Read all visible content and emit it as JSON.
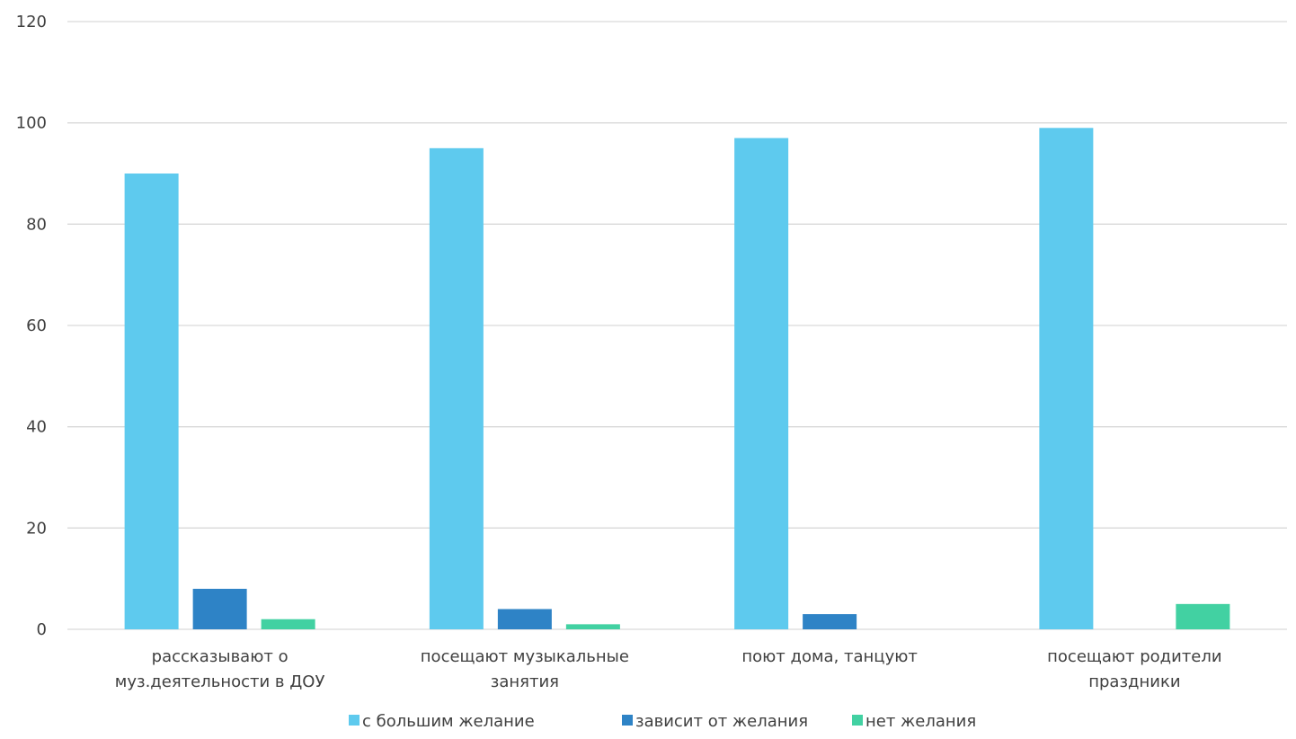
{
  "chart_data": {
    "type": "bar",
    "categories": [
      [
        "рассказывают о",
        "муз.деятельности в ДОУ"
      ],
      [
        "посещают музыкальные",
        "занятия"
      ],
      [
        "поют дома, танцуют"
      ],
      [
        "посещают родители",
        "праздники"
      ]
    ],
    "series": [
      {
        "name": "с большим желание",
        "color": "#5ECAEE",
        "values": [
          90,
          95,
          97,
          99
        ]
      },
      {
        "name": "зависит от желания",
        "color": "#2E83C6",
        "values": [
          8,
          4,
          3,
          0
        ]
      },
      {
        "name": "нет желания",
        "color": "#42D1A2",
        "values": [
          2,
          1,
          0,
          5
        ]
      }
    ],
    "yticks": [
      0,
      20,
      40,
      60,
      80,
      100,
      120
    ],
    "ylim": [
      0,
      120
    ],
    "grid": true,
    "gridColor": "#D9D9D9",
    "legend": "bottom"
  }
}
